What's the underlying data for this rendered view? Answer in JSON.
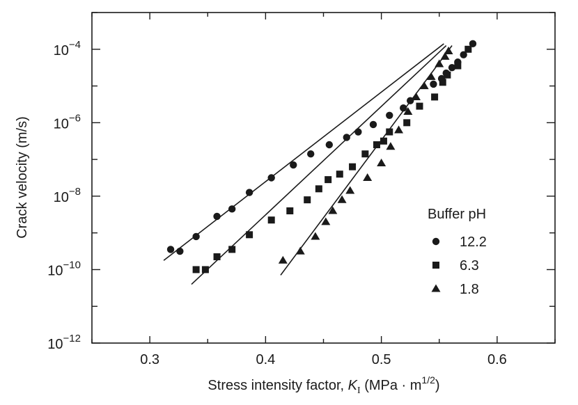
{
  "chart_data": {
    "type": "scatter",
    "title": "",
    "xlabel_prefix": "Stress intensity factor, ",
    "xlabel_var": "K",
    "xlabel_sub": "I",
    "xlabel_unit_pre": " (MPa · m",
    "xlabel_unit_sup": "1/2",
    "xlabel_unit_post": ")",
    "ylabel": "Crack velocity (m/s)",
    "xlim": [
      0.25,
      0.65
    ],
    "ylim_log10": [
      -12,
      -3
    ],
    "y_scale": "log",
    "grid": false,
    "x_ticks": [
      0.3,
      0.4,
      0.5,
      0.6
    ],
    "x_tick_labels": [
      "0.3",
      "0.4",
      "0.5",
      "0.6"
    ],
    "y_ticks_log10": [
      -12,
      -10,
      -8,
      -6,
      -4
    ],
    "y_tick_base": "10",
    "y_tick_exponents": [
      "−12",
      "−10",
      "−8",
      "−6",
      "−4"
    ],
    "legend": {
      "title": "Buffer pH",
      "placement": "right"
    },
    "series": [
      {
        "name": "12.2",
        "marker": "circle",
        "points_log10": [
          [
            0.318,
            -9.45
          ],
          [
            0.326,
            -9.5
          ],
          [
            0.34,
            -9.1
          ],
          [
            0.358,
            -8.55
          ],
          [
            0.371,
            -8.35
          ],
          [
            0.386,
            -7.9
          ],
          [
            0.405,
            -7.5
          ],
          [
            0.424,
            -7.15
          ],
          [
            0.439,
            -6.85
          ],
          [
            0.455,
            -6.6
          ],
          [
            0.47,
            -6.4
          ],
          [
            0.48,
            -6.25
          ],
          [
            0.493,
            -6.05
          ],
          [
            0.507,
            -5.8
          ],
          [
            0.519,
            -5.6
          ],
          [
            0.525,
            -5.4
          ],
          [
            0.545,
            -4.95
          ],
          [
            0.552,
            -4.8
          ],
          [
            0.556,
            -4.65
          ],
          [
            0.561,
            -4.5
          ],
          [
            0.566,
            -4.35
          ],
          [
            0.571,
            -4.15
          ],
          [
            0.579,
            -3.85
          ]
        ],
        "fit_log10": [
          [
            0.312,
            -9.75
          ],
          [
            0.554,
            -3.85
          ]
        ]
      },
      {
        "name": "6.3",
        "marker": "square",
        "points_log10": [
          [
            0.34,
            -10.0
          ],
          [
            0.348,
            -10.0
          ],
          [
            0.358,
            -9.65
          ],
          [
            0.371,
            -9.45
          ],
          [
            0.386,
            -9.05
          ],
          [
            0.405,
            -8.65
          ],
          [
            0.421,
            -8.4
          ],
          [
            0.436,
            -8.1
          ],
          [
            0.446,
            -7.8
          ],
          [
            0.454,
            -7.55
          ],
          [
            0.464,
            -7.4
          ],
          [
            0.475,
            -7.2
          ],
          [
            0.486,
            -6.85
          ],
          [
            0.496,
            -6.6
          ],
          [
            0.502,
            -6.5
          ],
          [
            0.507,
            -6.25
          ],
          [
            0.522,
            -6.0
          ],
          [
            0.533,
            -5.55
          ],
          [
            0.546,
            -5.3
          ],
          [
            0.553,
            -4.9
          ],
          [
            0.557,
            -4.7
          ],
          [
            0.566,
            -4.45
          ],
          [
            0.575,
            -4.0
          ]
        ],
        "fit_log10": [
          [
            0.336,
            -10.4
          ],
          [
            0.556,
            -3.9
          ]
        ]
      },
      {
        "name": "1.8",
        "marker": "triangle",
        "points_log10": [
          [
            0.415,
            -9.75
          ],
          [
            0.43,
            -9.5
          ],
          [
            0.443,
            -9.1
          ],
          [
            0.452,
            -8.7
          ],
          [
            0.458,
            -8.4
          ],
          [
            0.466,
            -8.1
          ],
          [
            0.473,
            -7.85
          ],
          [
            0.488,
            -7.5
          ],
          [
            0.5,
            -7.1
          ],
          [
            0.508,
            -6.65
          ],
          [
            0.515,
            -6.2
          ],
          [
            0.523,
            -5.7
          ],
          [
            0.53,
            -5.3
          ],
          [
            0.537,
            -5.0
          ],
          [
            0.543,
            -4.75
          ],
          [
            0.55,
            -4.4
          ],
          [
            0.555,
            -4.2
          ],
          [
            0.558,
            -4.05
          ]
        ],
        "fit_log10": [
          [
            0.413,
            -10.15
          ],
          [
            0.561,
            -3.9
          ]
        ]
      }
    ]
  }
}
